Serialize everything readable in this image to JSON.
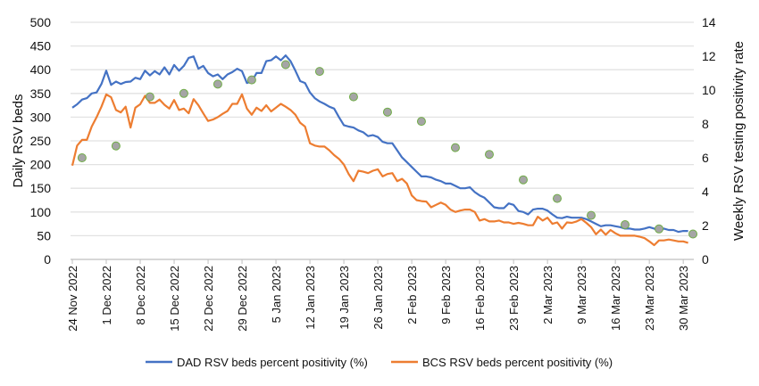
{
  "chart_data": {
    "type": "line",
    "title": "",
    "ylabel": "Daily RSV beds",
    "y2label": "Weekly RSV testing positivity rate",
    "ylim": [
      0,
      500
    ],
    "y2lim": [
      0,
      14
    ],
    "yticks": [
      0,
      50,
      100,
      150,
      200,
      250,
      300,
      350,
      400,
      450,
      500
    ],
    "y2ticks": [
      0,
      2,
      4,
      6,
      8,
      10,
      12,
      14
    ],
    "x_start": "24 Nov 2022",
    "xtick_labels": [
      "24 Nov 2022",
      "1 Dec 2022",
      "8 Dec 2022",
      "15 Dec 2022",
      "22 Dec 2022",
      "29 Dec 2022",
      "5 Jan 2023",
      "12 Jan 2023",
      "19 Jan 2023",
      "26 Jan 2023",
      "2 Feb 2023",
      "9 Feb 2023",
      "16 Feb 2023",
      "23 Feb 2023",
      "2 Mar 2023",
      "9 Mar 2023",
      "16 Mar 2023",
      "23 Mar 2023",
      "30 Mar 2023"
    ],
    "grid": true,
    "legend_position": "bottom",
    "series": [
      {
        "name": "DAD RSV beds percent positivity (%)",
        "color": "#4472c4",
        "axis": "left",
        "values": [
          320,
          327,
          337,
          340,
          350,
          352,
          370,
          398,
          368,
          375,
          370,
          374,
          375,
          383,
          380,
          398,
          388,
          397,
          390,
          405,
          390,
          410,
          398,
          408,
          425,
          428,
          402,
          408,
          393,
          386,
          390,
          380,
          390,
          395,
          402,
          397,
          372,
          375,
          393,
          393,
          418,
          420,
          428,
          420,
          430,
          418,
          398,
          376,
          372,
          352,
          340,
          333,
          328,
          322,
          318,
          300,
          283,
          280,
          278,
          272,
          268,
          260,
          262,
          258,
          248,
          245,
          245,
          230,
          215,
          205,
          195,
          185,
          175,
          175,
          173,
          168,
          165,
          160,
          160,
          155,
          150,
          150,
          152,
          142,
          135,
          130,
          120,
          110,
          108,
          108,
          118,
          115,
          102,
          100,
          95,
          105,
          107,
          107,
          103,
          95,
          88,
          87,
          90,
          88,
          88,
          88,
          85,
          80,
          75,
          70,
          72,
          72,
          70,
          68,
          65,
          65,
          63,
          63,
          65,
          68,
          65,
          60,
          65,
          62,
          62,
          58,
          60,
          60
        ]
      },
      {
        "name": "BCS RSV beds percent positivity (%)",
        "color": "#ed7d31",
        "axis": "left",
        "values": [
          198,
          240,
          252,
          252,
          280,
          300,
          322,
          348,
          342,
          315,
          310,
          322,
          278,
          320,
          327,
          345,
          330,
          330,
          337,
          326,
          318,
          336,
          315,
          318,
          308,
          338,
          325,
          308,
          292,
          295,
          300,
          307,
          313,
          328,
          328,
          348,
          318,
          305,
          320,
          313,
          325,
          312,
          320,
          328,
          322,
          315,
          305,
          288,
          280,
          245,
          240,
          238,
          238,
          230,
          220,
          212,
          200,
          180,
          165,
          187,
          185,
          182,
          187,
          190,
          175,
          180,
          182,
          165,
          170,
          160,
          135,
          125,
          123,
          122,
          110,
          115,
          120,
          115,
          105,
          100,
          103,
          105,
          105,
          100,
          82,
          85,
          80,
          80,
          82,
          78,
          78,
          75,
          77,
          75,
          72,
          72,
          90,
          82,
          88,
          75,
          78,
          65,
          78,
          77,
          80,
          85,
          77,
          68,
          53,
          63,
          52,
          62,
          55,
          50,
          50,
          50,
          50,
          48,
          45,
          38,
          30,
          40,
          40,
          42,
          40,
          38,
          38,
          35
        ]
      },
      {
        "name": "Weekly RSV testing positivity rate",
        "color": "#a5a5a5",
        "edge": "#70ad47",
        "axis": "right",
        "type": "scatter",
        "days": [
          2,
          9,
          16,
          23,
          30,
          37,
          44,
          51,
          58,
          65,
          72,
          79,
          86,
          93,
          100,
          107,
          114,
          121,
          128
        ],
        "values": [
          6.0,
          6.7,
          9.6,
          9.8,
          10.35,
          10.6,
          11.5,
          11.1,
          9.6,
          8.7,
          8.15,
          6.6,
          6.2,
          4.7,
          3.6,
          2.6,
          2.05,
          1.8,
          1.5
        ]
      }
    ]
  }
}
